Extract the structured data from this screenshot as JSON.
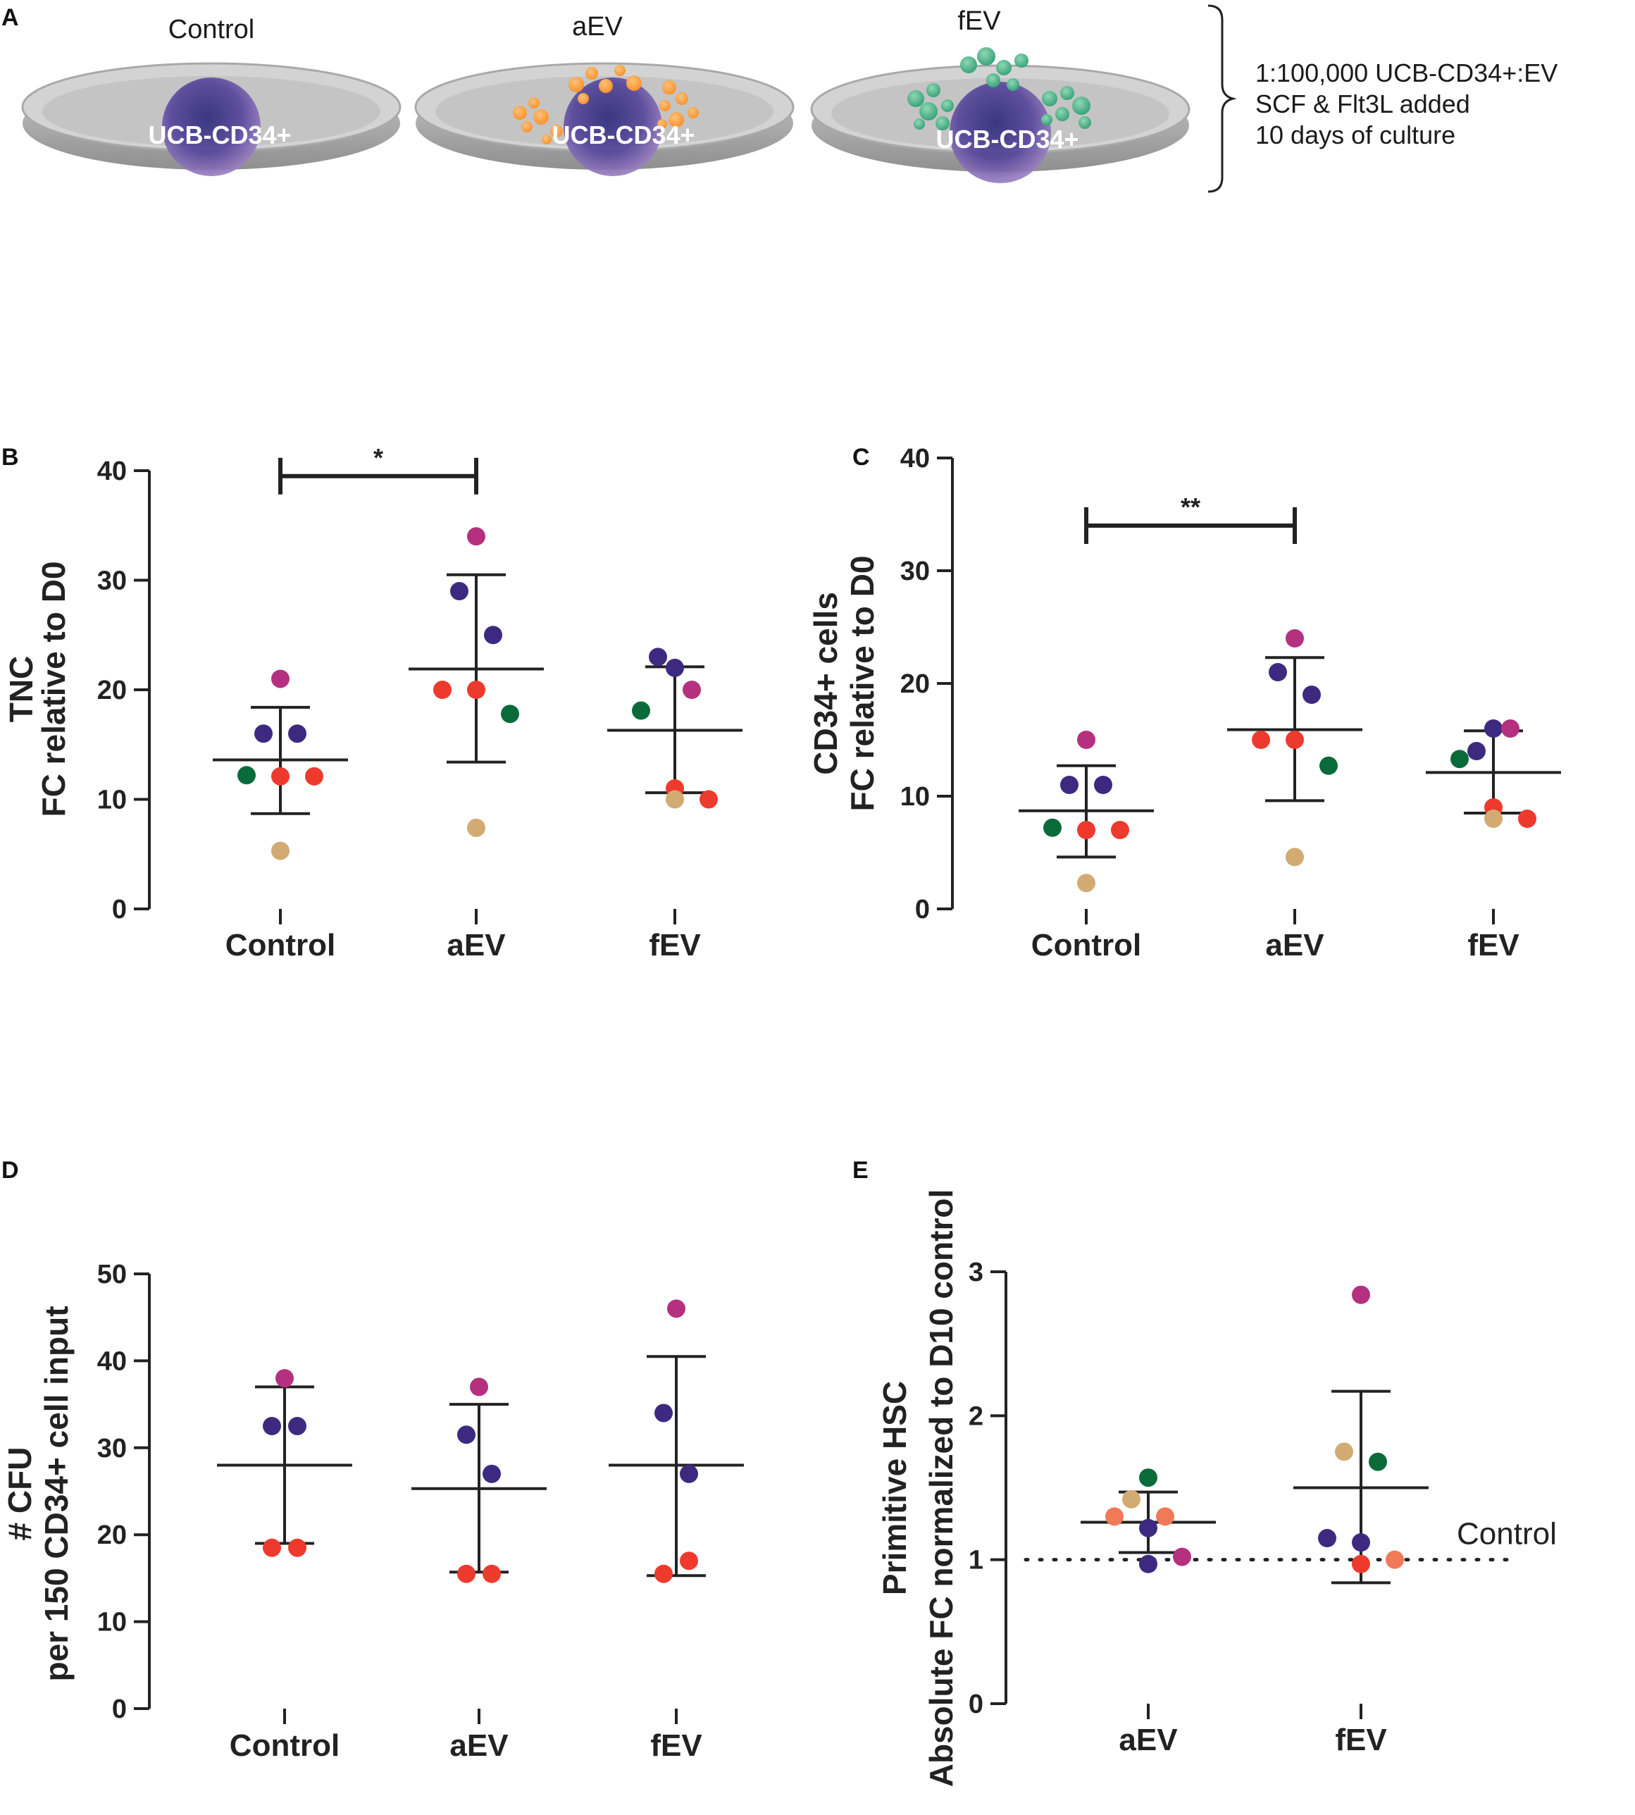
{
  "panel_a": {
    "letter": "A",
    "dishes": [
      {
        "title": "Control",
        "cell_label": "UCB-CD34+"
      },
      {
        "title": "aEV",
        "cell_label": "UCB-CD34+"
      },
      {
        "title": "fEV",
        "cell_label": "UCB-CD34+"
      }
    ],
    "notes": [
      "1:100,000 UCB-CD34+:EV",
      "SCF & Flt3L added",
      "10 days of culture"
    ],
    "colors": {
      "aEV_vesicle": "#f7932f",
      "fEV_vesicle": "#3aa37a",
      "cell": "#4a3a8a",
      "dish": "#b8b8b8"
    }
  },
  "chart_data": [
    {
      "id": "B",
      "letter": "B",
      "type": "scatter",
      "title": "",
      "ylabel_lines": [
        "TNC",
        "FC relative to D0"
      ],
      "xlabel": "",
      "categories": [
        "Control",
        "aEV",
        "fEV"
      ],
      "ylim": [
        0,
        40
      ],
      "yticks": [
        0,
        10,
        20,
        30,
        40
      ],
      "points": [
        [
          {
            "y": 21,
            "color": "#b5317f"
          },
          {
            "y": 16,
            "color": "#3d2a80"
          },
          {
            "y": 16,
            "color": "#3d2a80"
          },
          {
            "y": 12.2,
            "color": "#0a6b3a"
          },
          {
            "y": 12.1,
            "color": "#ee3a2d"
          },
          {
            "y": 12.1,
            "color": "#ee3a2d"
          },
          {
            "y": 5.3,
            "color": "#d2ab73"
          }
        ],
        [
          {
            "y": 34,
            "color": "#b5317f"
          },
          {
            "y": 29,
            "color": "#3d2a80"
          },
          {
            "y": 25,
            "color": "#3d2a80"
          },
          {
            "y": 20,
            "color": "#ee3a2d"
          },
          {
            "y": 20,
            "color": "#ee3a2d"
          },
          {
            "y": 17.8,
            "color": "#0a6b3a"
          },
          {
            "y": 7.4,
            "color": "#d2ab73"
          }
        ],
        [
          {
            "y": 22,
            "color": "#3d2a80"
          },
          {
            "y": 23,
            "color": "#3d2a80"
          },
          {
            "y": 20,
            "color": "#b5317f"
          },
          {
            "y": 18.1,
            "color": "#0a6b3a"
          },
          {
            "y": 11,
            "color": "#ee3a2d"
          },
          {
            "y": 10,
            "color": "#ee3a2d"
          },
          {
            "y": 10,
            "color": "#d2ab73"
          }
        ]
      ],
      "summary": [
        {
          "mean": 13.6,
          "lower": 8.7,
          "upper": 18.4
        },
        {
          "mean": 21.9,
          "lower": 13.4,
          "upper": 30.5
        },
        {
          "mean": 16.3,
          "lower": 10.6,
          "upper": 22.1
        }
      ],
      "significance": {
        "from": "Control",
        "to": "aEV",
        "y": 39.5,
        "label": "*"
      },
      "reference": null
    },
    {
      "id": "C",
      "letter": "C",
      "type": "scatter",
      "title": "",
      "ylabel_lines": [
        "CD34+ cells",
        "FC relative to D0"
      ],
      "xlabel": "",
      "categories": [
        "Control",
        "aEV",
        "fEV"
      ],
      "ylim": [
        0,
        40
      ],
      "yticks": [
        0,
        10,
        20,
        30,
        40
      ],
      "points": [
        [
          {
            "y": 15,
            "color": "#b5317f"
          },
          {
            "y": 11,
            "color": "#3d2a80"
          },
          {
            "y": 11,
            "color": "#3d2a80"
          },
          {
            "y": 7.2,
            "color": "#0a6b3a"
          },
          {
            "y": 7,
            "color": "#ee3a2d"
          },
          {
            "y": 7,
            "color": "#ee3a2d"
          },
          {
            "y": 2.3,
            "color": "#d2ab73"
          }
        ],
        [
          {
            "y": 24,
            "color": "#b5317f"
          },
          {
            "y": 21,
            "color": "#3d2a80"
          },
          {
            "y": 19,
            "color": "#3d2a80"
          },
          {
            "y": 15,
            "color": "#ee3a2d"
          },
          {
            "y": 15,
            "color": "#ee3a2d"
          },
          {
            "y": 12.7,
            "color": "#0a6b3a"
          },
          {
            "y": 4.6,
            "color": "#d2ab73"
          }
        ],
        [
          {
            "y": 16,
            "color": "#3d2a80"
          },
          {
            "y": 14,
            "color": "#3d2a80"
          },
          {
            "y": 16,
            "color": "#b5317f"
          },
          {
            "y": 13.3,
            "color": "#0a6b3a"
          },
          {
            "y": 9,
            "color": "#ee3a2d"
          },
          {
            "y": 8,
            "color": "#ee3a2d"
          },
          {
            "y": 8,
            "color": "#d2ab73"
          }
        ]
      ],
      "summary": [
        {
          "mean": 8.7,
          "lower": 4.6,
          "upper": 12.7
        },
        {
          "mean": 15.9,
          "lower": 9.6,
          "upper": 22.3
        },
        {
          "mean": 12.1,
          "lower": 8.5,
          "upper": 15.8
        }
      ],
      "significance": {
        "from": "Control",
        "to": "aEV",
        "y": 34,
        "label": "**"
      },
      "reference": null
    },
    {
      "id": "D",
      "letter": "D",
      "type": "scatter",
      "title": "",
      "ylabel_lines": [
        "# CFU",
        "per 150 CD34+ cell input"
      ],
      "xlabel": "",
      "categories": [
        "Control",
        "aEV",
        "fEV"
      ],
      "ylim": [
        0,
        50
      ],
      "yticks": [
        0,
        10,
        20,
        30,
        40,
        50
      ],
      "points": [
        [
          {
            "y": 38,
            "color": "#b5317f"
          },
          {
            "y": 32.5,
            "color": "#3d2a80"
          },
          {
            "y": 32.5,
            "color": "#3d2a80"
          },
          {
            "y": 18.5,
            "color": "#ee3a2d"
          },
          {
            "y": 18.5,
            "color": "#ee3a2d"
          }
        ],
        [
          {
            "y": 37,
            "color": "#b5317f"
          },
          {
            "y": 31.5,
            "color": "#3d2a80"
          },
          {
            "y": 27,
            "color": "#3d2a80"
          },
          {
            "y": 15.5,
            "color": "#ee3a2d"
          },
          {
            "y": 15.5,
            "color": "#ee3a2d"
          }
        ],
        [
          {
            "y": 46,
            "color": "#b5317f"
          },
          {
            "y": 34,
            "color": "#3d2a80"
          },
          {
            "y": 27,
            "color": "#3d2a80"
          },
          {
            "y": 15.5,
            "color": "#ee3a2d"
          },
          {
            "y": 17,
            "color": "#ee3a2d"
          }
        ]
      ],
      "summary": [
        {
          "mean": 28,
          "lower": 19,
          "upper": 37
        },
        {
          "mean": 25.3,
          "lower": 15.7,
          "upper": 35
        },
        {
          "mean": 28,
          "lower": 15.3,
          "upper": 40.5
        }
      ],
      "significance": null,
      "reference": null
    },
    {
      "id": "E",
      "letter": "E",
      "type": "scatter",
      "title": "",
      "ylabel_lines": [
        "Primitive HSC",
        "Absolute FC normalized to D10 control"
      ],
      "xlabel": "",
      "categories": [
        "aEV",
        "fEV"
      ],
      "ylim": [
        0,
        3
      ],
      "yticks": [
        0,
        1,
        2,
        3
      ],
      "points": [
        [
          {
            "y": 1.57,
            "color": "#0a6b3a"
          },
          {
            "y": 1.42,
            "color": "#d2ab73"
          },
          {
            "y": 1.3,
            "color": "#f07a57"
          },
          {
            "y": 1.3,
            "color": "#f07a57"
          },
          {
            "y": 1.22,
            "color": "#3d2a80"
          },
          {
            "y": 1.02,
            "color": "#b5317f"
          },
          {
            "y": 0.97,
            "color": "#3d2a80"
          }
        ],
        [
          {
            "y": 2.84,
            "color": "#b5317f"
          },
          {
            "y": 1.75,
            "color": "#d2ab73"
          },
          {
            "y": 1.68,
            "color": "#0a6b3a"
          },
          {
            "y": 1.15,
            "color": "#3d2a80"
          },
          {
            "y": 1.12,
            "color": "#3d2a80"
          },
          {
            "y": 1.0,
            "color": "#f07a57"
          },
          {
            "y": 0.97,
            "color": "#ee3a2d"
          }
        ]
      ],
      "summary": [
        {
          "mean": 1.26,
          "lower": 1.05,
          "upper": 1.47
        },
        {
          "mean": 1.5,
          "lower": 0.84,
          "upper": 2.17
        }
      ],
      "significance": null,
      "reference": {
        "y": 1,
        "label": "Control"
      }
    }
  ]
}
